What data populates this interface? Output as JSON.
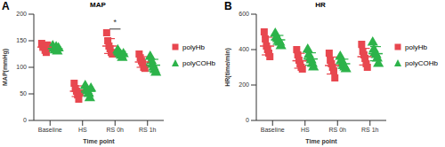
{
  "chart_data": [
    {
      "type": "scatter",
      "panel_label": "A",
      "title": "MAP",
      "x_label": "Time point",
      "y_label": "MAP(mmHg)",
      "categories": [
        "Baseline",
        "HS",
        "RS 0h",
        "RS 1h"
      ],
      "ylim": [
        0,
        200
      ],
      "yticks": [
        0,
        50,
        100,
        150,
        200
      ],
      "series": [
        {
          "name": "polyHb",
          "color": "#e8474f",
          "marker": "square",
          "points": [
            [
              145,
              140,
              138,
              132,
              128,
              142
            ],
            [
              70,
              60,
              55,
              48,
              40,
              52
            ],
            [
              165,
              150,
              140,
              135,
              128,
              125
            ],
            [
              125,
              118,
              112,
              108,
              100,
              98
            ]
          ],
          "values": [
            138,
            55,
            140,
            110
          ],
          "error": [
            6,
            10,
            14,
            10
          ]
        },
        {
          "name": "polyCOHb",
          "color": "#2db34a",
          "marker": "triangle",
          "points": [
            [
              140,
              135,
              132,
              138,
              130,
              136
            ],
            [
              65,
              58,
              55,
              50,
              42,
              60
            ],
            [
              132,
              128,
              125,
              122,
              118,
              125
            ],
            [
              120,
              112,
              105,
              100,
              95,
              90
            ]
          ],
          "values": [
            135,
            55,
            125,
            104
          ],
          "error": [
            4,
            8,
            5,
            11
          ]
        }
      ],
      "annotations": [
        {
          "text": "*",
          "category": "RS 0h",
          "y": 172
        }
      ]
    },
    {
      "type": "scatter",
      "panel_label": "B",
      "title": "HR",
      "x_label": "Time point",
      "y_label": "HR(time/min)",
      "categories": [
        "Baseline",
        "HS",
        "RS 0h",
        "RS 1h"
      ],
      "ylim": [
        0,
        600
      ],
      "yticks": [
        0,
        200,
        400,
        600
      ],
      "series": [
        {
          "name": "polyHb",
          "color": "#e8474f",
          "marker": "square",
          "points": [
            [
              500,
              460,
              420,
              400,
              380,
              360
            ],
            [
              400,
              370,
              340,
              320,
              300,
              290
            ],
            [
              380,
              340,
              320,
              300,
              280,
              240
            ],
            [
              430,
              390,
              370,
              350,
              320,
              300
            ]
          ],
          "values": [
            420,
            337,
            310,
            360
          ],
          "error": [
            50,
            42,
            48,
            47
          ]
        },
        {
          "name": "polyCOHb",
          "color": "#2db34a",
          "marker": "triangle",
          "points": [
            [
              490,
              470,
              460,
              450,
              440,
              420
            ],
            [
              400,
              370,
              350,
              340,
              320,
              300
            ],
            [
              360,
              340,
              320,
              310,
              300,
              290
            ],
            [
              440,
              400,
              380,
              370,
              350,
              320
            ]
          ],
          "values": [
            455,
            347,
            320,
            377
          ],
          "error": [
            25,
            35,
            26,
            40
          ]
        }
      ],
      "annotations": []
    }
  ]
}
